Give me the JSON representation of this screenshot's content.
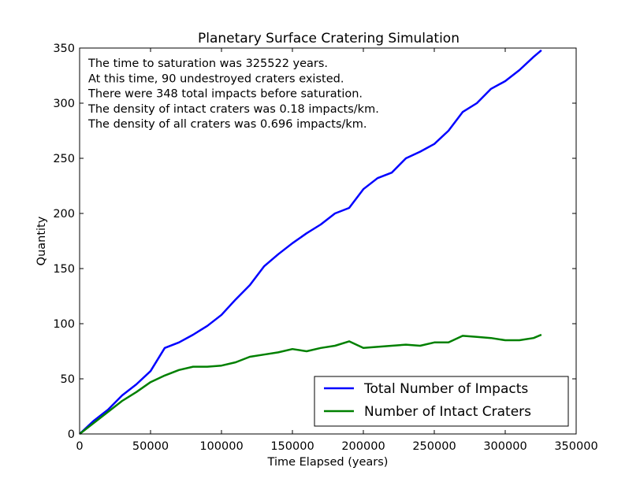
{
  "chart_data": {
    "type": "line",
    "title": "Planetary Surface Cratering Simulation",
    "xlabel": "Time Elapsed (years)",
    "ylabel": "Quantity",
    "xlim": [
      0,
      350000
    ],
    "ylim": [
      0,
      350
    ],
    "xticks": [
      0,
      50000,
      100000,
      150000,
      200000,
      250000,
      300000,
      350000
    ],
    "xtick_labels": [
      "0",
      "50000",
      "100000",
      "150000",
      "200000",
      "250000",
      "300000",
      "350000"
    ],
    "yticks": [
      0,
      50,
      100,
      150,
      200,
      250,
      300,
      350
    ],
    "ytick_labels": [
      "0",
      "50",
      "100",
      "150",
      "200",
      "250",
      "300",
      "350"
    ],
    "grid": false,
    "legend_position": "lower-right",
    "annotations": [
      "The time to saturation was 325522 years.",
      "At this time, 90 undestroyed craters existed.",
      "There were 348 total impacts before saturation.",
      "The density of intact craters was 0.18 impacts/km.",
      "The density of all craters was 0.696 impacts/km."
    ],
    "series": [
      {
        "name": "Total Number of Impacts",
        "color": "#0000ff",
        "x": [
          0,
          10000,
          20000,
          30000,
          40000,
          50000,
          60000,
          70000,
          80000,
          90000,
          100000,
          110000,
          120000,
          130000,
          140000,
          150000,
          160000,
          170000,
          180000,
          190000,
          200000,
          210000,
          220000,
          230000,
          240000,
          250000,
          260000,
          270000,
          280000,
          290000,
          300000,
          310000,
          320000,
          325522
        ],
        "y": [
          0,
          12,
          22,
          35,
          45,
          57,
          78,
          83,
          90,
          98,
          108,
          122,
          135,
          152,
          163,
          173,
          182,
          190,
          200,
          205,
          222,
          232,
          237,
          250,
          256,
          263,
          275,
          292,
          300,
          313,
          320,
          330,
          342,
          348
        ]
      },
      {
        "name": "Number of Intact Craters",
        "color": "#008000",
        "x": [
          0,
          10000,
          20000,
          30000,
          40000,
          50000,
          60000,
          70000,
          80000,
          90000,
          100000,
          110000,
          120000,
          130000,
          140000,
          150000,
          160000,
          170000,
          180000,
          190000,
          200000,
          210000,
          220000,
          230000,
          240000,
          250000,
          260000,
          270000,
          280000,
          290000,
          300000,
          310000,
          320000,
          325522
        ],
        "y": [
          0,
          10,
          20,
          30,
          38,
          47,
          53,
          58,
          61,
          61,
          62,
          65,
          70,
          72,
          74,
          77,
          75,
          78,
          80,
          84,
          78,
          79,
          80,
          81,
          80,
          83,
          83,
          89,
          88,
          87,
          85,
          85,
          87,
          90
        ]
      }
    ]
  }
}
